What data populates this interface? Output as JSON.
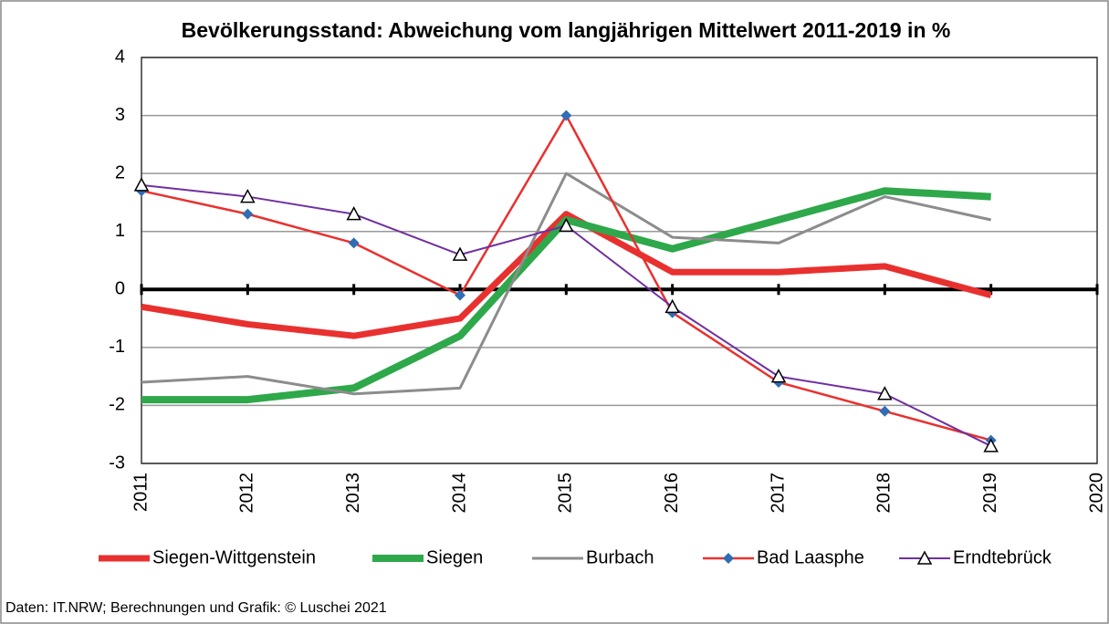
{
  "chart_data": {
    "type": "line",
    "title": "Bevölkerungsstand: Abweichung vom langjährigen Mittelwert 2011-2019 in %",
    "source": "Daten: IT.NRW; Berechnungen und Grafik: © Luschei 2021",
    "x": [
      2011,
      2012,
      2013,
      2014,
      2015,
      2016,
      2017,
      2018,
      2019
    ],
    "xlim": [
      2011,
      2020
    ],
    "xticks": [
      2011,
      2012,
      2013,
      2014,
      2015,
      2016,
      2017,
      2018,
      2019,
      2020
    ],
    "ylim": [
      -3,
      4
    ],
    "yticks": [
      4,
      3,
      2,
      1,
      0,
      -1,
      -2,
      -3
    ],
    "grid": true,
    "legend": "bottom",
    "series": [
      {
        "name": "Siegen-Wittgenstein",
        "color": "#e8312f",
        "line_width": 7,
        "values": [
          -0.3,
          -0.6,
          -0.8,
          -0.5,
          1.3,
          0.3,
          0.3,
          0.4,
          -0.1
        ]
      },
      {
        "name": "Siegen",
        "color": "#2ea84a",
        "line_width": 8,
        "values": [
          -1.9,
          -1.9,
          -1.7,
          -0.8,
          1.2,
          0.7,
          1.2,
          1.7,
          1.6
        ]
      },
      {
        "name": "Burbach",
        "color": "#8c8c8c",
        "line_width": 3,
        "values": [
          -1.6,
          -1.5,
          -1.8,
          -1.7,
          2.0,
          0.9,
          0.8,
          1.6,
          1.2
        ]
      },
      {
        "name": "Bad Laasphe",
        "color": "#e8312f",
        "line_width": 2.5,
        "marker": "diamond",
        "marker_color": "#2f6db5",
        "values": [
          1.7,
          1.3,
          0.8,
          -0.1,
          3.0,
          -0.4,
          -1.6,
          -2.1,
          -2.6
        ]
      },
      {
        "name": "Erndtebrück",
        "color": "#7030a0",
        "line_width": 2,
        "marker": "triangle",
        "marker_color": "#ffffff",
        "values": [
          1.8,
          1.6,
          1.3,
          0.6,
          1.1,
          -0.3,
          -1.5,
          -1.8,
          -2.7
        ]
      }
    ]
  }
}
